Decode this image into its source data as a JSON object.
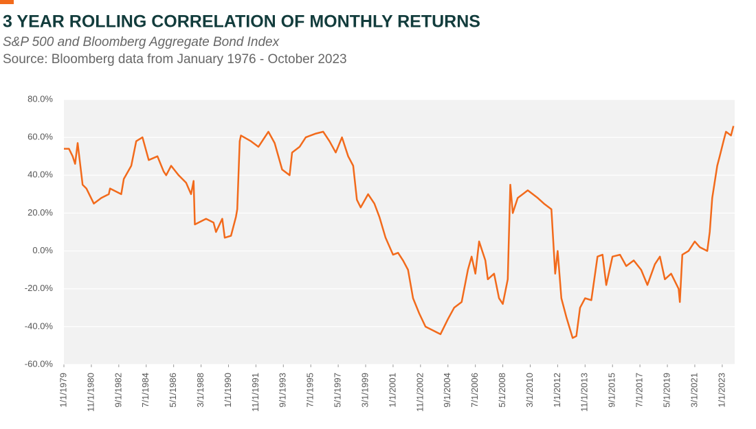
{
  "chart_data": {
    "type": "line",
    "title": "3 YEAR ROLLING CORRELATION OF MONTHLY RETURNS",
    "subtitle": "S&P 500 and Bloomberg Aggregate Bond Index",
    "source": "Source: Bloomberg data from January 1976 - October 2023",
    "x": [
      "1/1/1979",
      "5/1/1979",
      "8/1/1979",
      "10/1/1979",
      "12/1/1979",
      "4/1/1980",
      "7/1/1980",
      "1/1/1981",
      "7/1/1981",
      "1/1/1982",
      "2/1/1982",
      "11/1/1982",
      "1/1/1983",
      "7/1/1983",
      "11/1/1983",
      "4/1/1984",
      "9/1/1984",
      "4/1/1985",
      "9/1/1985",
      "11/1/1985",
      "3/1/1986",
      "9/1/1986",
      "3/1/1987",
      "7/1/1987",
      "9/1/1987",
      "10/1/1987",
      "7/1/1988",
      "1/1/1989",
      "3/1/1989",
      "8/1/1989",
      "10/1/1989",
      "3/1/1990",
      "7/1/1990",
      "8/1/1990",
      "10/1/1990",
      "11/1/1990",
      "7/1/1991",
      "1/1/1992",
      "9/1/1992",
      "2/1/1993",
      "8/1/1993",
      "2/1/1994",
      "4/1/1994",
      "10/1/1994",
      "3/1/1995",
      "11/1/1995",
      "5/1/1996",
      "10/1/1996",
      "3/1/1997",
      "8/1/1997",
      "1/1/1998",
      "5/1/1998",
      "8/1/1998",
      "11/1/1998",
      "5/1/1999",
      "10/1/1999",
      "2/1/2000",
      "7/1/2000",
      "1/1/2001",
      "5/1/2001",
      "9/1/2001",
      "1/1/2002",
      "5/1/2002",
      "10/1/2002",
      "3/1/2003",
      "9/1/2003",
      "3/1/2004",
      "9/1/2004",
      "2/1/2005",
      "8/1/2005",
      "1/1/2006",
      "4/1/2006",
      "7/1/2006",
      "10/1/2006",
      "3/1/2007",
      "5/1/2007",
      "10/1/2007",
      "2/1/2008",
      "5/1/2008",
      "9/1/2008",
      "11/1/2008",
      "1/1/2009",
      "5/1/2009",
      "1/1/2010",
      "9/1/2010",
      "2/1/2011",
      "8/1/2011",
      "11/1/2011",
      "1/1/2012",
      "4/1/2012",
      "8/1/2012",
      "1/1/2013",
      "4/1/2013",
      "7/1/2013",
      "11/1/2013",
      "4/1/2014",
      "9/1/2014",
      "1/1/2015",
      "4/1/2015",
      "9/1/2015",
      "3/1/2016",
      "8/1/2016",
      "2/1/2017",
      "8/1/2017",
      "1/1/2018",
      "7/1/2018",
      "11/1/2018",
      "3/1/2019",
      "8/1/2019",
      "2/1/2020",
      "3/1/2020",
      "5/1/2020",
      "10/1/2020",
      "3/1/2021",
      "7/1/2021",
      "1/1/2022",
      "3/1/2022",
      "5/1/2022",
      "9/1/2022",
      "11/1/2022",
      "2/1/2023",
      "4/1/2023",
      "8/1/2023",
      "10/1/2023"
    ],
    "series": [
      {
        "color": "#f26a1b",
        "values": [
          54,
          54,
          50,
          46,
          57,
          35,
          33,
          25,
          28,
          30,
          33,
          30,
          38,
          45,
          58,
          60,
          48,
          50,
          42,
          40,
          45,
          40,
          36,
          30,
          37,
          14,
          17,
          15,
          10,
          17,
          7,
          8,
          18,
          22,
          58,
          61,
          58,
          55,
          63,
          57,
          43,
          40,
          52,
          55,
          60,
          62,
          63,
          58,
          52,
          60,
          50,
          45,
          27,
          23,
          30,
          25,
          18,
          7,
          -2,
          -1,
          -5,
          -10,
          -25,
          -33,
          -40,
          -42,
          -44,
          -36,
          -30,
          -27,
          -10,
          -3,
          -12,
          5,
          -5,
          -15,
          -12,
          -25,
          -28,
          -15,
          35,
          20,
          28,
          32,
          28,
          25,
          22,
          -12,
          0,
          -25,
          -35,
          -46,
          -45,
          -30,
          -25,
          -26,
          -3,
          -2,
          -18,
          -3,
          -2,
          -8,
          -5,
          -10,
          -18,
          -7,
          -3,
          -15,
          -12,
          -20,
          -27,
          -2,
          0,
          5,
          2,
          0,
          10,
          28,
          45,
          50,
          58,
          63,
          61,
          66
        ]
      }
    ],
    "xlim": [
      "1/1/1979",
      "11/1/2023"
    ],
    "xticks": [
      "1/1/1979",
      "11/1/1980",
      "9/1/1982",
      "7/1/1984",
      "5/1/1986",
      "3/1/1988",
      "1/1/1990",
      "11/1/1991",
      "9/1/1993",
      "7/1/1995",
      "5/1/1997",
      "3/1/1999",
      "1/1/2001",
      "11/1/2002",
      "9/1/2004",
      "7/1/2006",
      "5/1/2008",
      "3/1/2010",
      "1/1/2012",
      "11/1/2013",
      "9/1/2015",
      "7/1/2017",
      "5/1/2019",
      "3/1/2021",
      "1/1/2023"
    ],
    "ylim": [
      -60,
      80
    ],
    "yticks": [
      {
        "value": -60,
        "label": "-60.0%"
      },
      {
        "value": -40,
        "label": "-40.0%"
      },
      {
        "value": -20,
        "label": "-20.0%"
      },
      {
        "value": 0,
        "label": "0.0%"
      },
      {
        "value": 20,
        "label": "20.0%"
      },
      {
        "value": 40,
        "label": "40.0%"
      },
      {
        "value": 60,
        "label": "60.0%"
      },
      {
        "value": 80,
        "label": "80.0%"
      }
    ],
    "grid": true
  }
}
